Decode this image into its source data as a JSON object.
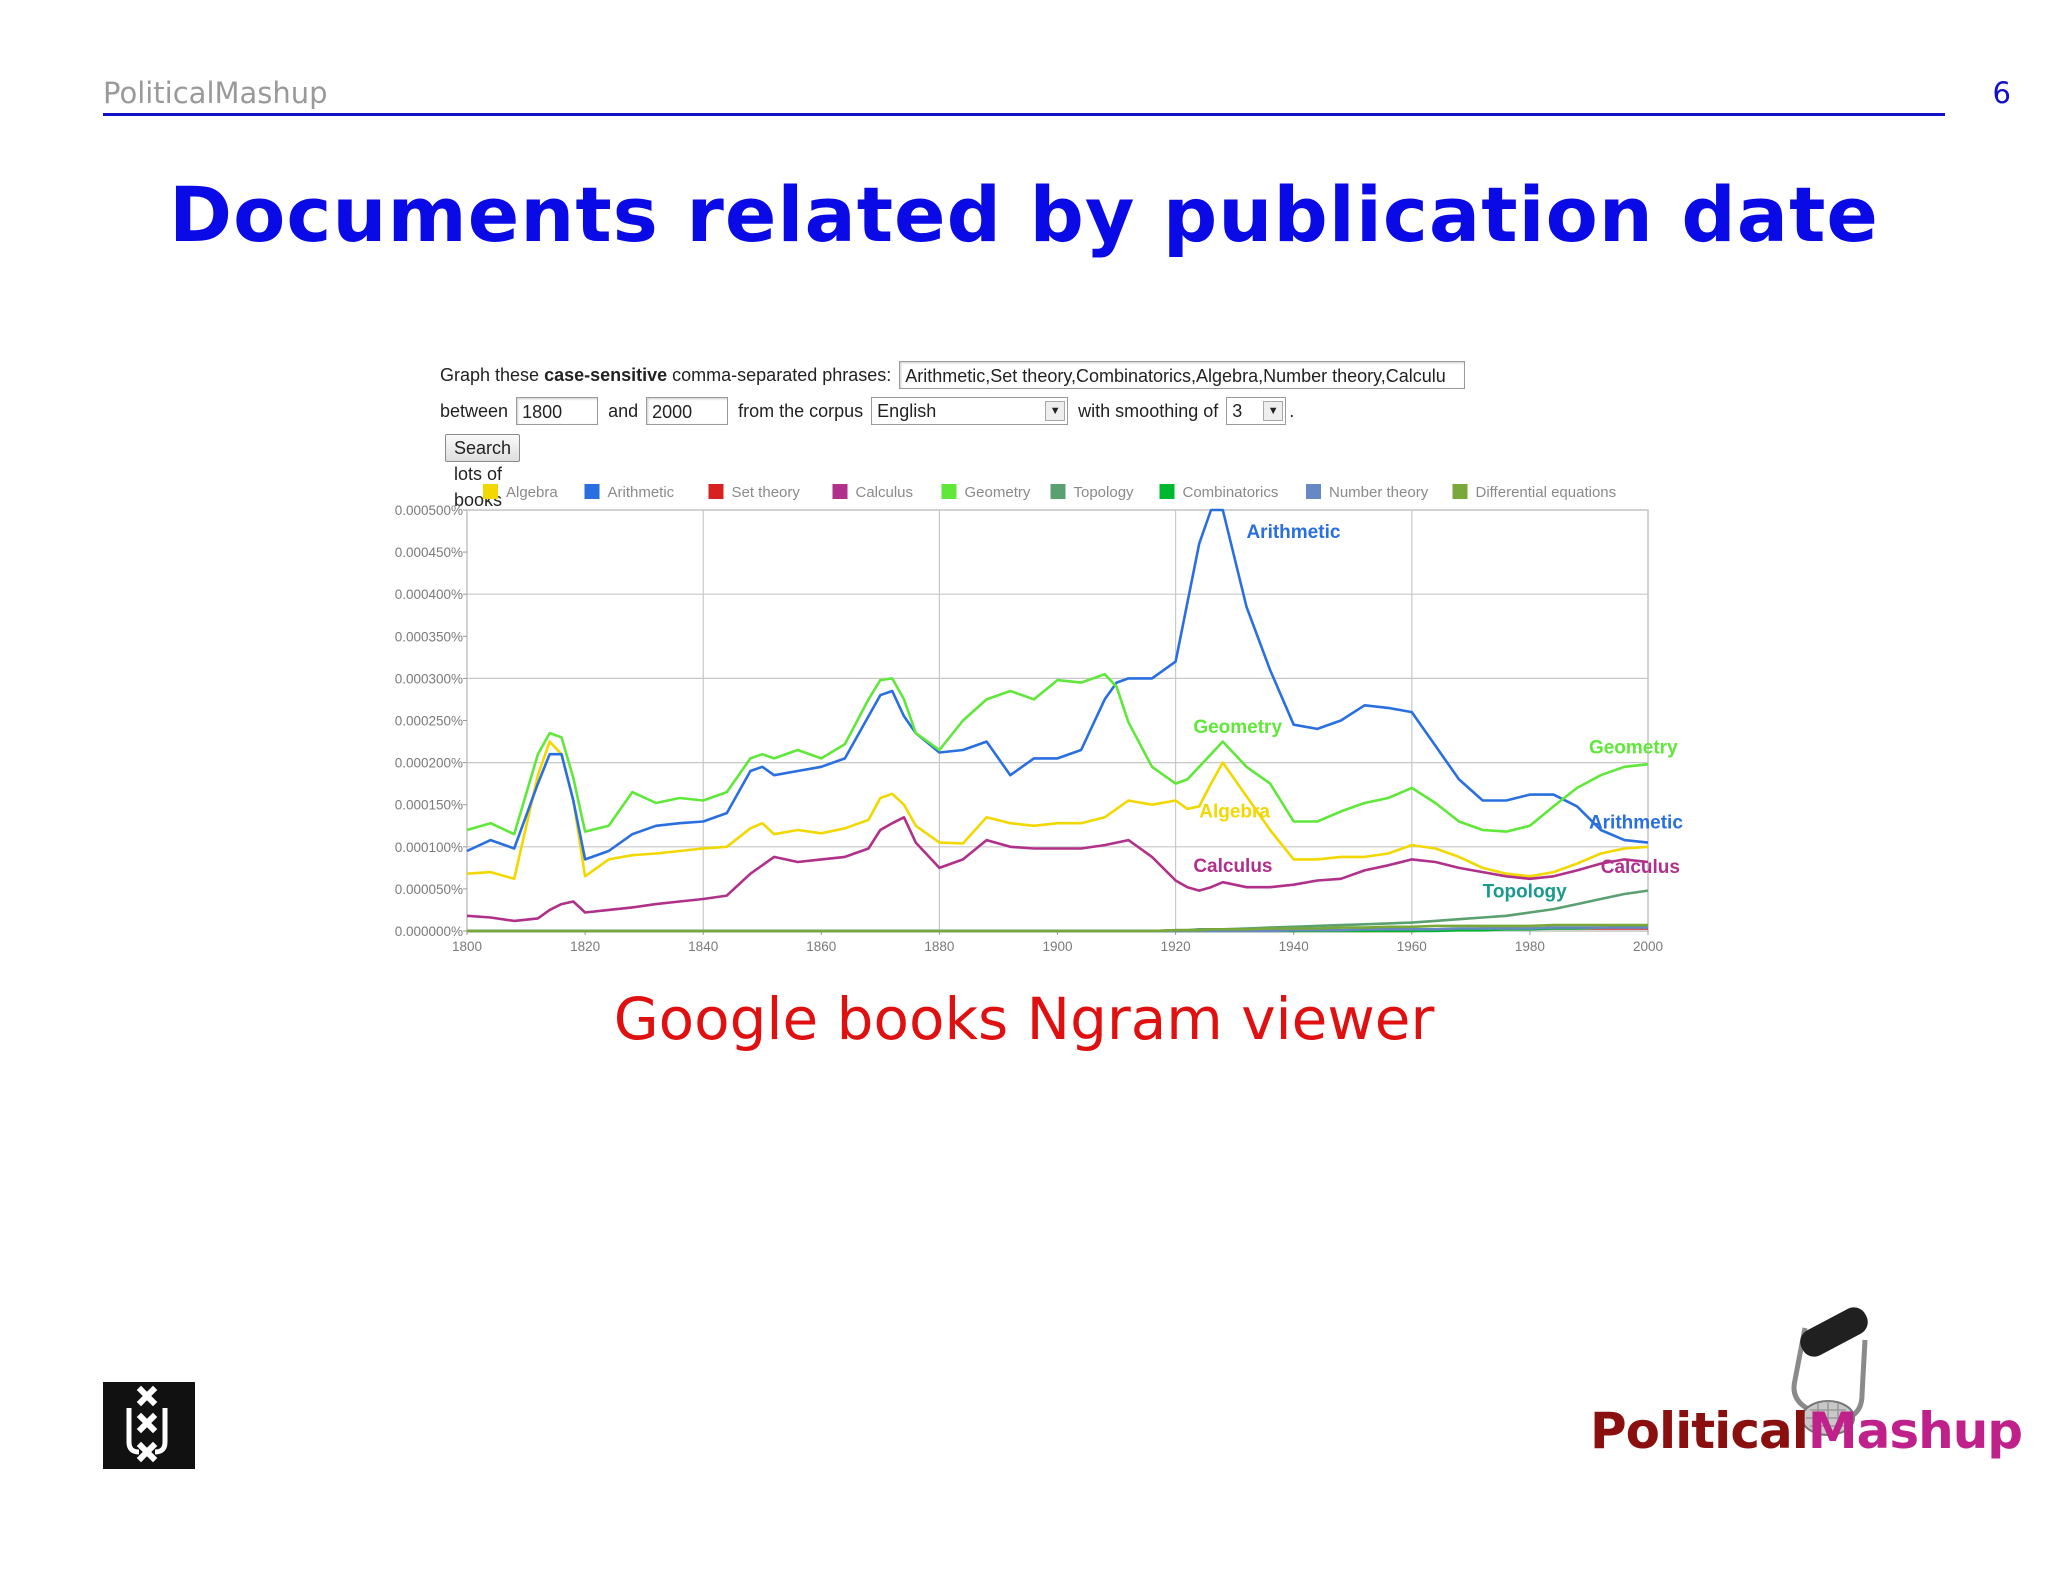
{
  "header": {
    "left": "PoliticalMashup",
    "page_number": "6"
  },
  "title": "Documents related by publication date",
  "form": {
    "phrases_label_1": "Graph these ",
    "phrases_label_bold": "case-sensitive",
    "phrases_label_2": " comma-separated phrases:",
    "phrases_value": "Arithmetic,Set theory,Combinatorics,Algebra,Number theory,Calculu",
    "between_label": "between",
    "start_year": "1800",
    "and_label": "and",
    "end_year": "2000",
    "corpus_label": "from the corpus",
    "corpus_value": "English",
    "smoothing_label": "with smoothing of",
    "smoothing_value": "3",
    "period": ".",
    "search_button": "Search lots of books"
  },
  "chart_data": {
    "type": "line",
    "x": [
      1800,
      1804,
      1808,
      1812,
      1814,
      1816,
      1818,
      1820,
      1824,
      1828,
      1832,
      1836,
      1840,
      1844,
      1848,
      1850,
      1852,
      1856,
      1860,
      1864,
      1868,
      1870,
      1872,
      1874,
      1876,
      1880,
      1884,
      1888,
      1892,
      1896,
      1900,
      1904,
      1908,
      1910,
      1912,
      1916,
      1920,
      1922,
      1924,
      1926,
      1928,
      1932,
      1936,
      1940,
      1944,
      1948,
      1952,
      1956,
      1960,
      1964,
      1968,
      1972,
      1976,
      1980,
      1984,
      1988,
      1992,
      1996,
      2000
    ],
    "series": [
      {
        "name": "Algebra",
        "color": "#f2d800",
        "values": [
          6.8e-05,
          7e-05,
          6.2e-05,
          0.000185,
          0.000225,
          0.00021,
          0.000155,
          6.5e-05,
          8.5e-05,
          9e-05,
          9.2e-05,
          9.5e-05,
          9.8e-05,
          0.0001,
          0.000122,
          0.000128,
          0.000115,
          0.00012,
          0.000116,
          0.000122,
          0.000132,
          0.000158,
          0.000163,
          0.00015,
          0.000125,
          0.000105,
          0.000104,
          0.000135,
          0.000128,
          0.000125,
          0.000128,
          0.000128,
          0.000135,
          0.000145,
          0.000155,
          0.00015,
          0.000155,
          0.000145,
          0.000148,
          0.000175,
          0.0002,
          0.00016,
          0.00012,
          8.5e-05,
          8.5e-05,
          8.8e-05,
          8.8e-05,
          9.2e-05,
          0.000102,
          9.8e-05,
          8.8e-05,
          7.5e-05,
          6.8e-05,
          6.5e-05,
          7e-05,
          8e-05,
          9.2e-05,
          9.8e-05,
          0.0001
        ]
      },
      {
        "name": "Arithmetic",
        "color": "#2a6fe0",
        "values": [
          9.5e-05,
          0.000108,
          9.8e-05,
          0.000175,
          0.00021,
          0.00021,
          0.000155,
          8.5e-05,
          9.5e-05,
          0.000115,
          0.000125,
          0.000128,
          0.00013,
          0.00014,
          0.00019,
          0.000195,
          0.000185,
          0.00019,
          0.000195,
          0.000205,
          0.000255,
          0.00028,
          0.000285,
          0.000255,
          0.000235,
          0.000212,
          0.000215,
          0.000225,
          0.000185,
          0.000205,
          0.000205,
          0.000215,
          0.000275,
          0.000295,
          0.0003,
          0.0003,
          0.00032,
          0.00039,
          0.00046,
          0.0005,
          0.0005,
          0.000385,
          0.00031,
          0.000245,
          0.00024,
          0.00025,
          0.000268,
          0.000265,
          0.00026,
          0.00022,
          0.00018,
          0.000155,
          0.000155,
          0.000162,
          0.000162,
          0.000148,
          0.00012,
          0.000108,
          0.000105
        ]
      },
      {
        "name": "Set theory",
        "color": "#d92020",
        "values": [
          0,
          0,
          0,
          0,
          0,
          0,
          0,
          0,
          0,
          0,
          0,
          0,
          0,
          0,
          0,
          0,
          0,
          0,
          0,
          0,
          0,
          0,
          0,
          0,
          0,
          0,
          0,
          0,
          0,
          0,
          0,
          0,
          0,
          0,
          0,
          0,
          0,
          0,
          0,
          0,
          0,
          0,
          0,
          0,
          0,
          0,
          0,
          0,
          0,
          1e-06,
          2e-06,
          3e-06,
          3e-06,
          3e-06,
          3e-06,
          3e-06,
          3e-06,
          3e-06,
          3e-06
        ]
      },
      {
        "name": "Calculus",
        "color": "#b0308a",
        "values": [
          1.8e-05,
          1.6e-05,
          1.2e-05,
          1.5e-05,
          2.5e-05,
          3.2e-05,
          3.5e-05,
          2.2e-05,
          2.5e-05,
          2.8e-05,
          3.2e-05,
          3.5e-05,
          3.8e-05,
          4.2e-05,
          6.8e-05,
          7.8e-05,
          8.8e-05,
          8.2e-05,
          8.5e-05,
          8.8e-05,
          9.8e-05,
          0.00012,
          0.000128,
          0.000135,
          0.000105,
          7.5e-05,
          8.5e-05,
          0.000108,
          0.0001,
          9.8e-05,
          9.8e-05,
          9.8e-05,
          0.000102,
          0.000105,
          0.000108,
          8.8e-05,
          6e-05,
          5.2e-05,
          4.8e-05,
          5.2e-05,
          5.8e-05,
          5.2e-05,
          5.2e-05,
          5.5e-05,
          6e-05,
          6.2e-05,
          7.2e-05,
          7.8e-05,
          8.5e-05,
          8.2e-05,
          7.5e-05,
          7e-05,
          6.5e-05,
          6.2e-05,
          6.5e-05,
          7.2e-05,
          8e-05,
          8.5e-05,
          8.2e-05
        ]
      },
      {
        "name": "Geometry",
        "color": "#5fe83a",
        "values": [
          0.00012,
          0.000128,
          0.000115,
          0.00021,
          0.000235,
          0.00023,
          0.000182,
          0.000118,
          0.000125,
          0.000165,
          0.000152,
          0.000158,
          0.000155,
          0.000165,
          0.000205,
          0.00021,
          0.000205,
          0.000215,
          0.000205,
          0.000222,
          0.000275,
          0.000298,
          0.0003,
          0.000275,
          0.000235,
          0.000215,
          0.00025,
          0.000275,
          0.000285,
          0.000275,
          0.000298,
          0.000295,
          0.000305,
          0.00029,
          0.000248,
          0.000195,
          0.000175,
          0.00018,
          0.000195,
          0.00021,
          0.000225,
          0.000195,
          0.000175,
          0.00013,
          0.00013,
          0.000142,
          0.000152,
          0.000158,
          0.00017,
          0.000152,
          0.00013,
          0.00012,
          0.000118,
          0.000125,
          0.000148,
          0.00017,
          0.000185,
          0.000195,
          0.000198
        ]
      },
      {
        "name": "Topology",
        "color": "#5aa070",
        "values": [
          0,
          0,
          0,
          0,
          0,
          0,
          0,
          0,
          0,
          0,
          0,
          0,
          0,
          0,
          0,
          0,
          0,
          0,
          0,
          0,
          0,
          0,
          0,
          0,
          0,
          0,
          0,
          0,
          0,
          0,
          0,
          0,
          0,
          0,
          0,
          0,
          1e-06,
          1e-06,
          2e-06,
          2e-06,
          2e-06,
          3e-06,
          4e-06,
          5e-06,
          6e-06,
          7e-06,
          8e-06,
          9e-06,
          1e-05,
          1.2e-05,
          1.4e-05,
          1.6e-05,
          1.8e-05,
          2.2e-05,
          2.6e-05,
          3.2e-05,
          3.8e-05,
          4.4e-05,
          4.8e-05
        ]
      },
      {
        "name": "Combinatorics",
        "color": "#00b82e",
        "values": [
          0,
          0,
          0,
          0,
          0,
          0,
          0,
          0,
          0,
          0,
          0,
          0,
          0,
          0,
          0,
          0,
          0,
          0,
          0,
          0,
          0,
          0,
          0,
          0,
          0,
          0,
          0,
          0,
          0,
          0,
          0,
          0,
          0,
          0,
          0,
          0,
          0,
          0,
          0,
          0,
          0,
          0,
          0,
          0,
          0,
          0,
          0,
          0,
          0,
          0,
          1e-06,
          1e-06,
          2e-06,
          2e-06,
          3e-06,
          3e-06,
          4e-06,
          5e-06,
          6e-06
        ]
      },
      {
        "name": "Number theory",
        "color": "#6688c4",
        "values": [
          0,
          0,
          0,
          0,
          0,
          0,
          0,
          0,
          0,
          0,
          0,
          0,
          0,
          0,
          0,
          0,
          0,
          0,
          0,
          0,
          0,
          0,
          0,
          0,
          0,
          0,
          0,
          0,
          0,
          0,
          0,
          0,
          0,
          0,
          0,
          0,
          0,
          0,
          0,
          0,
          0,
          0,
          0,
          1e-06,
          1e-06,
          1e-06,
          2e-06,
          2e-06,
          2e-06,
          2e-06,
          3e-06,
          3e-06,
          3e-06,
          3e-06,
          4e-06,
          4e-06,
          4e-06,
          4e-06,
          4e-06
        ]
      },
      {
        "name": "Differential equations",
        "color": "#7aa83a",
        "values": [
          0,
          0,
          0,
          0,
          0,
          0,
          0,
          0,
          0,
          0,
          0,
          0,
          0,
          0,
          0,
          0,
          0,
          0,
          0,
          0,
          0,
          0,
          0,
          0,
          0,
          0,
          0,
          0,
          0,
          0,
          0,
          0,
          0,
          0,
          0,
          0,
          1e-06,
          1e-06,
          1e-06,
          2e-06,
          2e-06,
          2e-06,
          3e-06,
          3e-06,
          3e-06,
          4e-06,
          4e-06,
          5e-06,
          5e-06,
          6e-06,
          6e-06,
          6e-06,
          6e-06,
          6e-06,
          7e-06,
          7e-06,
          7e-06,
          7e-06,
          7e-06
        ]
      }
    ],
    "y_ticks": [
      "0.000500%",
      "0.000450%",
      "0.000400%",
      "0.000350%",
      "0.000300%",
      "0.000250%",
      "0.000200%",
      "0.000150%",
      "0.000100%",
      "0.000050%",
      "0.000000%"
    ],
    "x_ticks": [
      "1800",
      "1820",
      "1840",
      "1860",
      "1880",
      "1900",
      "1920",
      "1940",
      "1960",
      "1980",
      "2000"
    ],
    "xlim": [
      1800,
      2000
    ],
    "ylim": [
      0,
      0.0005
    ],
    "grid": true,
    "legend_position": "top",
    "annotations": [
      {
        "text": "Arithmetic",
        "series": "Arithmetic",
        "x": 1932,
        "y": 0.000467,
        "color": "#2a6fe0"
      },
      {
        "text": "Geometry",
        "series": "Geometry",
        "x": 1923,
        "y": 0.000235,
        "color": "#5fe83a"
      },
      {
        "text": "Algebra",
        "series": "Algebra",
        "x": 1924,
        "y": 0.000135,
        "color": "#f2d800"
      },
      {
        "text": "Calculus",
        "series": "Calculus",
        "x": 1923,
        "y": 7e-05,
        "color": "#b0308a"
      },
      {
        "text": "Geometry",
        "series": "Geometry",
        "x": 1990,
        "y": 0.000211,
        "color": "#5fe83a"
      },
      {
        "text": "Arithmetic",
        "series": "Arithmetic",
        "x": 1990,
        "y": 0.000122,
        "color": "#2a6fe0"
      },
      {
        "text": "Calculus",
        "series": "Calculus",
        "x": 1992,
        "y": 6.9e-05,
        "color": "#b0308a"
      },
      {
        "text": "Topology",
        "series": "Topology",
        "x": 1972,
        "y": 4e-05,
        "color": "#1a9a8a"
      }
    ]
  },
  "caption": "Google books Ngram viewer",
  "logos": {
    "uva": "university-of-amsterdam-logo",
    "pm_part1": "Political",
    "pm_part2": "Mashup",
    "pm_color1": "#8a1010",
    "pm_color2": "#c0208a"
  }
}
